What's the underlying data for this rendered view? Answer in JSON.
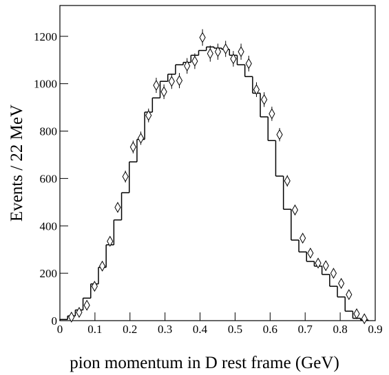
{
  "chart_data": {
    "type": "histogram",
    "x_label": "pion momentum in D rest frame (GeV)",
    "y_label": "Events / 22 MeV",
    "xlim": [
      0,
      0.9
    ],
    "ylim": [
      0,
      1330
    ],
    "xticks": [
      0,
      0.1,
      0.2,
      0.3,
      0.4,
      0.5,
      0.6,
      0.7,
      0.8,
      0.9
    ],
    "yticks": [
      0,
      200,
      400,
      600,
      800,
      1000,
      1200
    ],
    "color": "#000000",
    "bins": [
      0,
      0.022,
      0.044,
      0.066,
      0.088,
      0.11,
      0.132,
      0.154,
      0.176,
      0.198,
      0.22,
      0.242,
      0.264,
      0.286,
      0.308,
      0.33,
      0.352,
      0.374,
      0.396,
      0.418,
      0.44,
      0.462,
      0.484,
      0.506,
      0.528,
      0.55,
      0.572,
      0.594,
      0.616,
      0.638,
      0.66,
      0.682,
      0.704,
      0.726,
      0.748,
      0.77,
      0.792,
      0.814,
      0.836,
      0.858,
      0.88
    ],
    "counts": [
      5,
      20,
      45,
      95,
      155,
      225,
      320,
      425,
      540,
      670,
      765,
      880,
      940,
      1010,
      1040,
      1080,
      1090,
      1120,
      1140,
      1155,
      1150,
      1145,
      1120,
      1080,
      1030,
      960,
      860,
      760,
      610,
      470,
      340,
      290,
      250,
      230,
      195,
      145,
      100,
      40,
      10,
      3
    ],
    "points": {
      "x": [
        0.033,
        0.055,
        0.077,
        0.099,
        0.121,
        0.143,
        0.165,
        0.187,
        0.209,
        0.231,
        0.253,
        0.275,
        0.297,
        0.319,
        0.341,
        0.363,
        0.385,
        0.407,
        0.429,
        0.451,
        0.473,
        0.495,
        0.517,
        0.539,
        0.561,
        0.583,
        0.605,
        0.627,
        0.649,
        0.671,
        0.693,
        0.715,
        0.737,
        0.759,
        0.781,
        0.803,
        0.825,
        0.847,
        0.869
      ],
      "values": [
        15,
        35,
        65,
        145,
        230,
        335,
        478,
        608,
        733,
        770,
        866,
        993,
        966,
        1010,
        1013,
        1075,
        1095,
        1195,
        1127,
        1135,
        1147,
        1105,
        1135,
        1085,
        975,
        933,
        873,
        785,
        590,
        467,
        348,
        285,
        243,
        232,
        200,
        157,
        110,
        29,
        8
      ],
      "errors": [
        4,
        6,
        8,
        12,
        15,
        18,
        22,
        25,
        27,
        28,
        29,
        32,
        31,
        32,
        32,
        33,
        33,
        35,
        34,
        34,
        34,
        33,
        34,
        33,
        31,
        31,
        30,
        28,
        24,
        22,
        19,
        17,
        16,
        15,
        14,
        13,
        10,
        5,
        3
      ]
    }
  }
}
